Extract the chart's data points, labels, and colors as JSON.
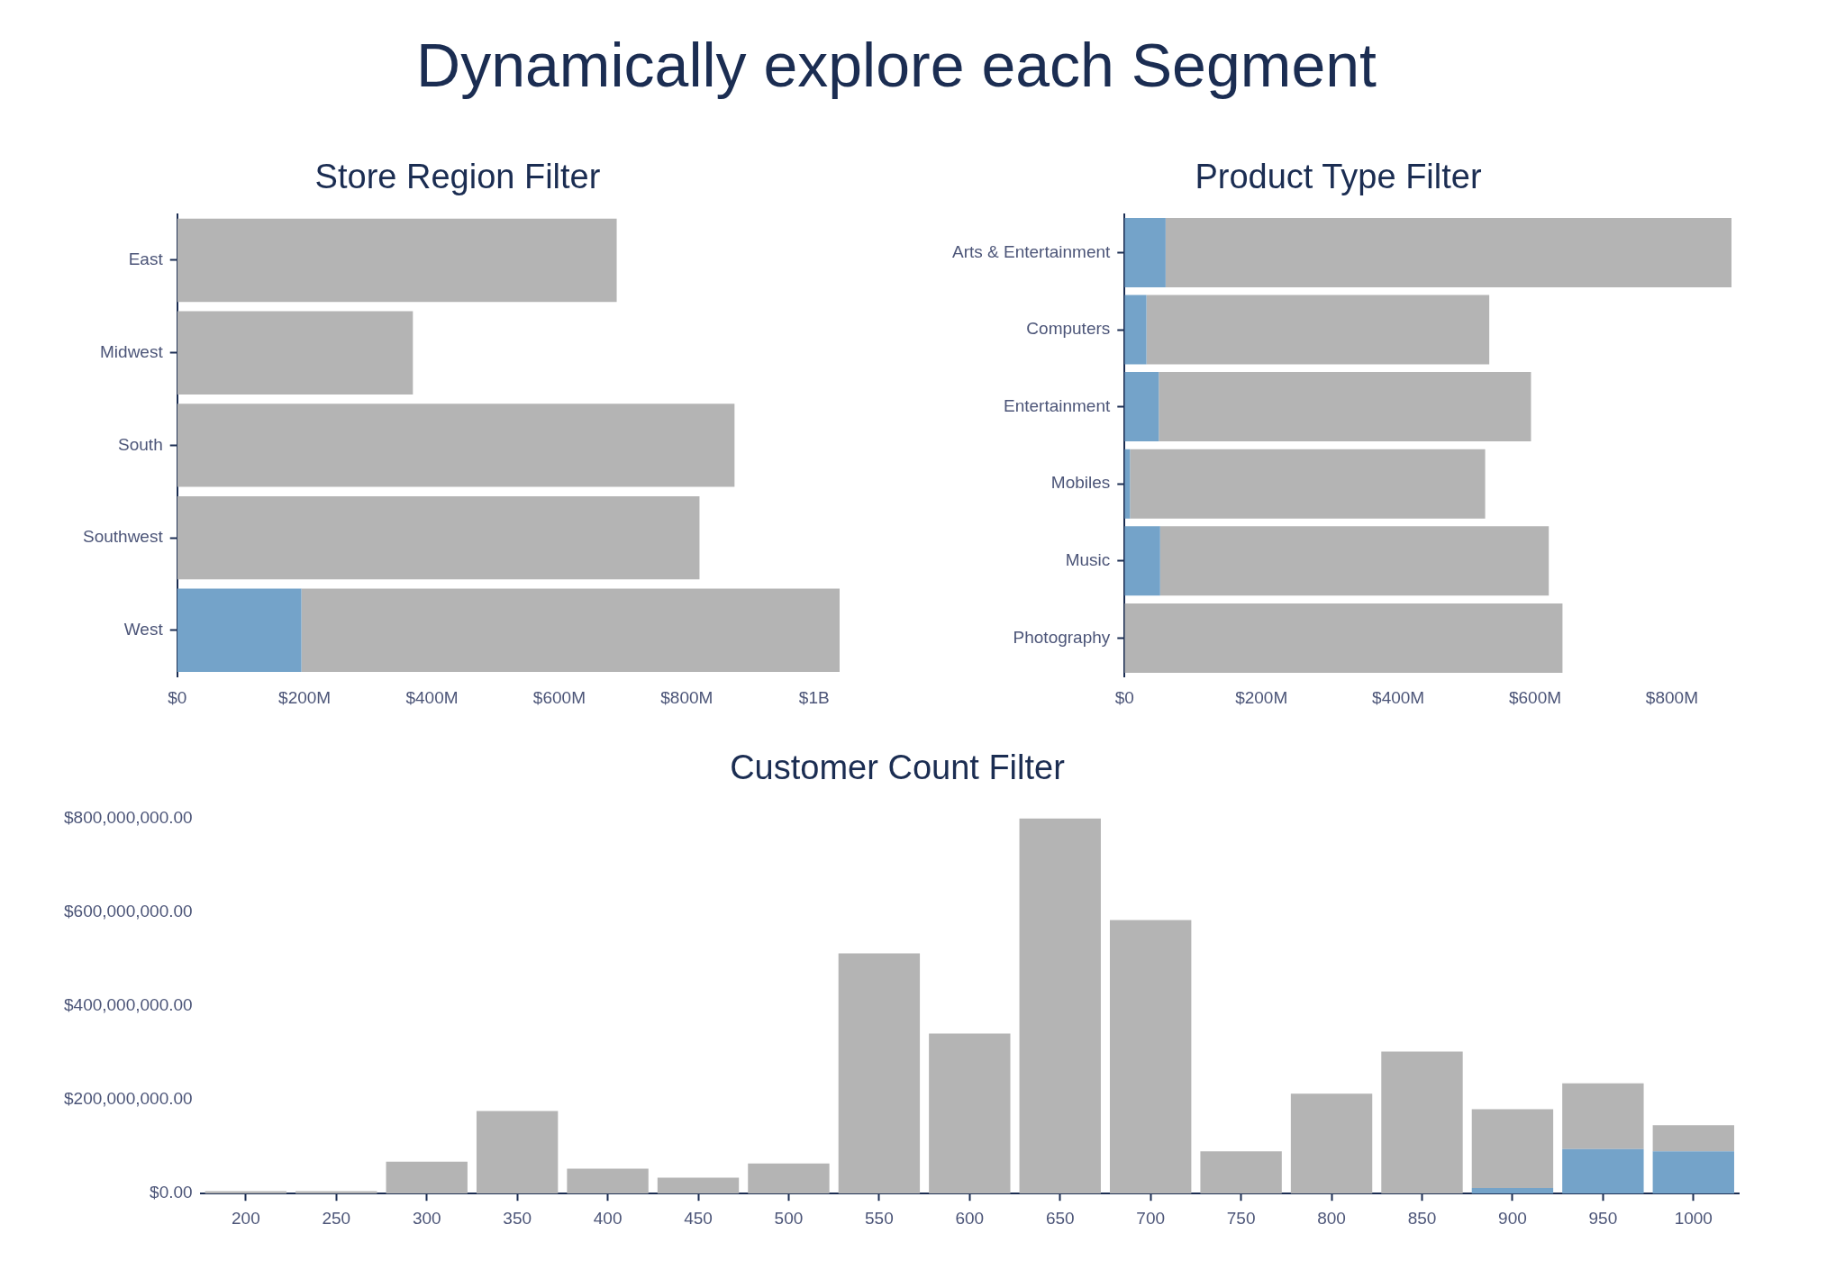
{
  "chart_data": [
    {
      "type": "bar",
      "title": "Store Region Filter",
      "orientation": "horizontal",
      "stacked": true,
      "annotations": [
        "Dynamically explore each Segment"
      ],
      "categories": [
        "East",
        "Midwest",
        "South",
        "Southwest",
        "West"
      ],
      "series": [
        {
          "color": "#74a3c9",
          "values": [
            0,
            0,
            0,
            0,
            195000000
          ]
        },
        {
          "color": "#b4b4b4",
          "values": [
            690000000,
            370000000,
            875000000,
            820000000,
            845000000
          ]
        }
      ],
      "xlim": [
        0,
        1040000000
      ],
      "xticks": [
        {
          "value": 0,
          "label": "$0"
        },
        {
          "value": 200000000,
          "label": "$200M"
        },
        {
          "value": 400000000,
          "label": "$400M"
        },
        {
          "value": 600000000,
          "label": "$600M"
        },
        {
          "value": 800000000,
          "label": "$800M"
        },
        {
          "value": 1000000000,
          "label": "$1B"
        }
      ]
    },
    {
      "type": "bar",
      "title": "Product Type Filter",
      "orientation": "horizontal",
      "stacked": true,
      "categories": [
        "Arts & Entertainment",
        "Computers",
        "Entertainment",
        "Mobiles",
        "Music",
        "Photography"
      ],
      "series": [
        {
          "color": "#74a3c9",
          "values": [
            60000000,
            32000000,
            50000000,
            8000000,
            52000000,
            0
          ]
        },
        {
          "color": "#b4b4b4",
          "values": [
            827000000,
            501000000,
            544000000,
            519000000,
            568000000,
            640000000
          ]
        }
      ],
      "xlim": [
        0,
        887000000
      ],
      "xticks": [
        {
          "value": 0,
          "label": "$0"
        },
        {
          "value": 200000000,
          "label": "$200M"
        },
        {
          "value": 400000000,
          "label": "$400M"
        },
        {
          "value": 600000000,
          "label": "$600M"
        },
        {
          "value": 800000000,
          "label": "$800M"
        }
      ]
    },
    {
      "type": "bar",
      "title": "Customer Count Filter",
      "stacked": true,
      "categories": [
        "200",
        "250",
        "300",
        "350",
        "400",
        "450",
        "500",
        "550",
        "600",
        "650",
        "700",
        "750",
        "800",
        "850",
        "900",
        "950",
        "1000"
      ],
      "series": [
        {
          "color": "#74a3c9",
          "values": [
            0,
            0,
            0,
            0,
            0,
            0,
            0,
            0,
            0,
            0,
            0,
            0,
            0,
            0,
            12000000,
            95000000,
            90000000
          ]
        },
        {
          "color": "#b4b4b4",
          "values": [
            5000000,
            5000000,
            68000000,
            176000000,
            53000000,
            34000000,
            64000000,
            512000000,
            341000000,
            800000000,
            583000000,
            90000000,
            213000000,
            303000000,
            168000000,
            140000000,
            56000000
          ]
        }
      ],
      "ylim": [
        0,
        800000000
      ],
      "yticks": [
        {
          "value": 0,
          "label": "$0.00"
        },
        {
          "value": 200000000,
          "label": "$200,000,000.00"
        },
        {
          "value": 400000000,
          "label": "$400,000,000.00"
        },
        {
          "value": 600000000,
          "label": "$600,000,000.00"
        },
        {
          "value": 800000000,
          "label": "$800,000,000.00"
        }
      ]
    }
  ]
}
